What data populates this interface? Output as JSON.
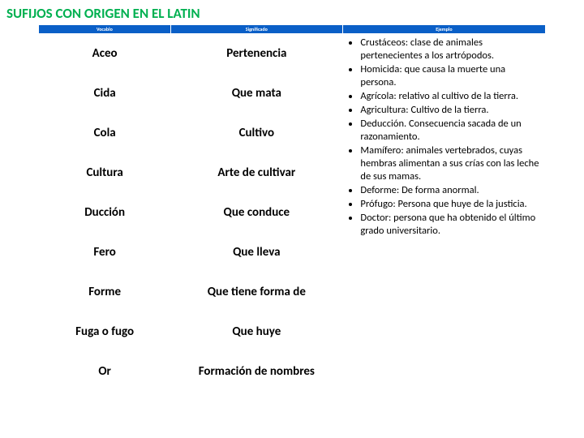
{
  "title": "SUFIJOS CON ORIGEN EN EL LATIN",
  "headers": {
    "c0": "Vocablo",
    "c1": "Significado",
    "c2": "Ejemplo"
  },
  "rows": [
    {
      "voc": "Aceo",
      "sig": "Pertenencia"
    },
    {
      "voc": "Cida",
      "sig": "Que mata"
    },
    {
      "voc": "Cola",
      "sig": "Cultivo"
    },
    {
      "voc": "Cultura",
      "sig": "Arte de cultivar"
    },
    {
      "voc": "Ducción",
      "sig": "Que conduce"
    },
    {
      "voc": "Fero",
      "sig": "Que lleva"
    },
    {
      "voc": "Forme",
      "sig": "Que tiene forma de"
    },
    {
      "voc": "Fuga o fugo",
      "sig": "Que huye"
    },
    {
      "voc": "Or",
      "sig": "Formación de nombres"
    }
  ],
  "examples": [
    "Crustáceos: clase de animales pertenecientes a los artrópodos.",
    "Homicida: que causa la muerte una persona.",
    "Agrícola: relativo al cultivo de la tierra.",
    "Agricultura: Cultivo de la tierra.",
    "Deducción. Consecuencia sacada de un razonamiento.",
    "Mamífero: animales vertebrados, cuyas hembras alimentan a sus crías con las leche de sus mamas.",
    "Deforme: De forma anormal.",
    "Prófugo: Persona que huye de la justicia.",
    "Doctor: persona que ha obtenido el último grado universitario."
  ],
  "colors": {
    "title": "#00b050",
    "header_bg": "#0a5fc7",
    "header_fg": "#ffffff",
    "text": "#000000",
    "bg": "#ffffff"
  }
}
